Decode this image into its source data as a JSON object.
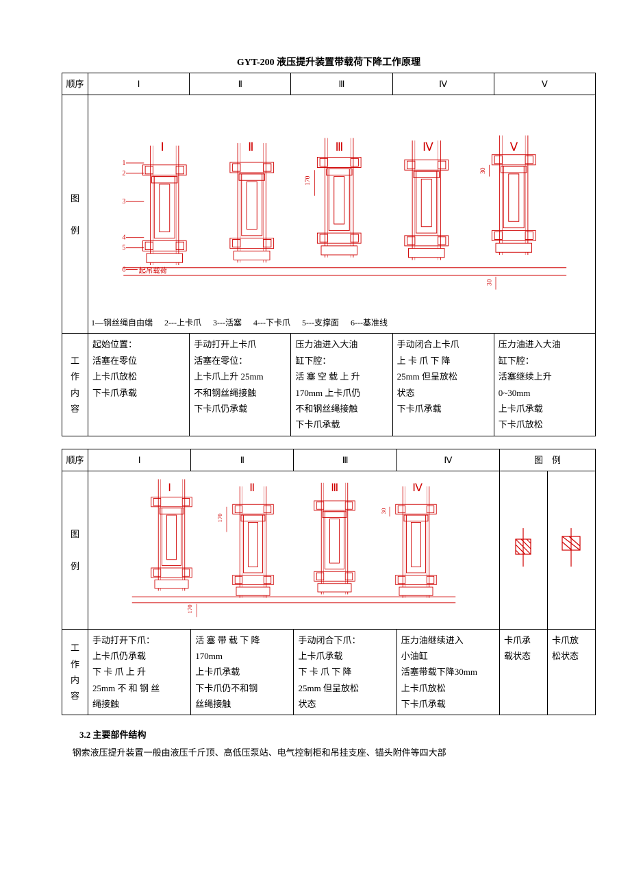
{
  "colors": {
    "diagram": "#d00000",
    "line": "#000000"
  },
  "title": "GYT-200 液压提升装置带载荷下降工作原理",
  "table1": {
    "header": {
      "seq": "顺序",
      "cols": [
        "Ⅰ",
        "Ⅱ",
        "Ⅲ",
        "Ⅳ",
        "Ⅴ"
      ]
    },
    "rowDiagramLabel": "图\n\n例",
    "rowWorkLabel": "工\n作\n内\n容",
    "diagram": {
      "romans": [
        "Ⅰ",
        "Ⅱ",
        "Ⅲ",
        "Ⅳ",
        "Ⅴ"
      ],
      "partNums": [
        "1",
        "2",
        "3",
        "4",
        "5",
        "6"
      ],
      "hoistLabel": "起吊载荷",
      "dims": {
        "d170": "170",
        "d30a": "30",
        "d30b": "30"
      },
      "legend": [
        "1—钢丝绳自由端",
        "2---上卡爪",
        "3---活塞",
        "4---下卡爪",
        "5---支撑面",
        "6---基准线"
      ]
    },
    "work": [
      "起始位置：\n活塞在零位\n上卡爪放松\n下卡爪承载",
      "手动打开上卡爪\n活塞在零位：\n上卡爪上升 25mm\n不和钢丝绳接触\n下卡爪仍承载",
      "压力油进入大油\n缸下腔：\n活 塞 空 载 上 升\n170mm 上卡爪仍\n不和钢丝绳接触\n下卡爪承载",
      "手动闭合上卡爪\n上 卡 爪 下 降\n25mm 但呈放松\n状态\n下卡爪承载",
      "压力油进入大油\n缸下腔：\n活塞继续上升\n0~30mm\n上卡爪承载\n下卡爪放松"
    ]
  },
  "table2": {
    "header": {
      "seq": "顺序",
      "cols": [
        "Ⅰ",
        "Ⅱ",
        "Ⅲ",
        "Ⅳ"
      ],
      "legend": "图　例"
    },
    "rowDiagramLabel": "图\n\n例",
    "rowWorkLabel": "工\n作\n内\n容",
    "diagram": {
      "romans": [
        "Ⅰ",
        "Ⅱ",
        "Ⅲ",
        "Ⅳ"
      ],
      "dims": {
        "d170a": "170",
        "d30": "30",
        "d170b": "170"
      }
    },
    "legendCol": {
      "a": "卡爪承\n载状态",
      "b": "卡爪放\n松状态"
    },
    "work": [
      "手动打开下爪：\n上卡爪仍承载\n下 卡 爪 上 升\n25mm 不 和 钢 丝\n绳接触",
      "活 塞 带 载 下 降\n170mm\n上卡爪承载\n下卡爪仍不和钢\n丝绳接触",
      "手动闭合下爪：\n上卡爪承载\n下 卡 爪 下 降\n25mm 但呈放松\n状态",
      "压力油继续进入\n小油缸\n活塞带载下降30mm\n上卡爪放松\n下卡爪承载"
    ]
  },
  "section": {
    "num": "3.2 主要部件结构",
    "para": "钢索液压提升装置一般由液压千斤顶、高低压泵站、电气控制柜和吊挂支座、锚头附件等四大部"
  }
}
